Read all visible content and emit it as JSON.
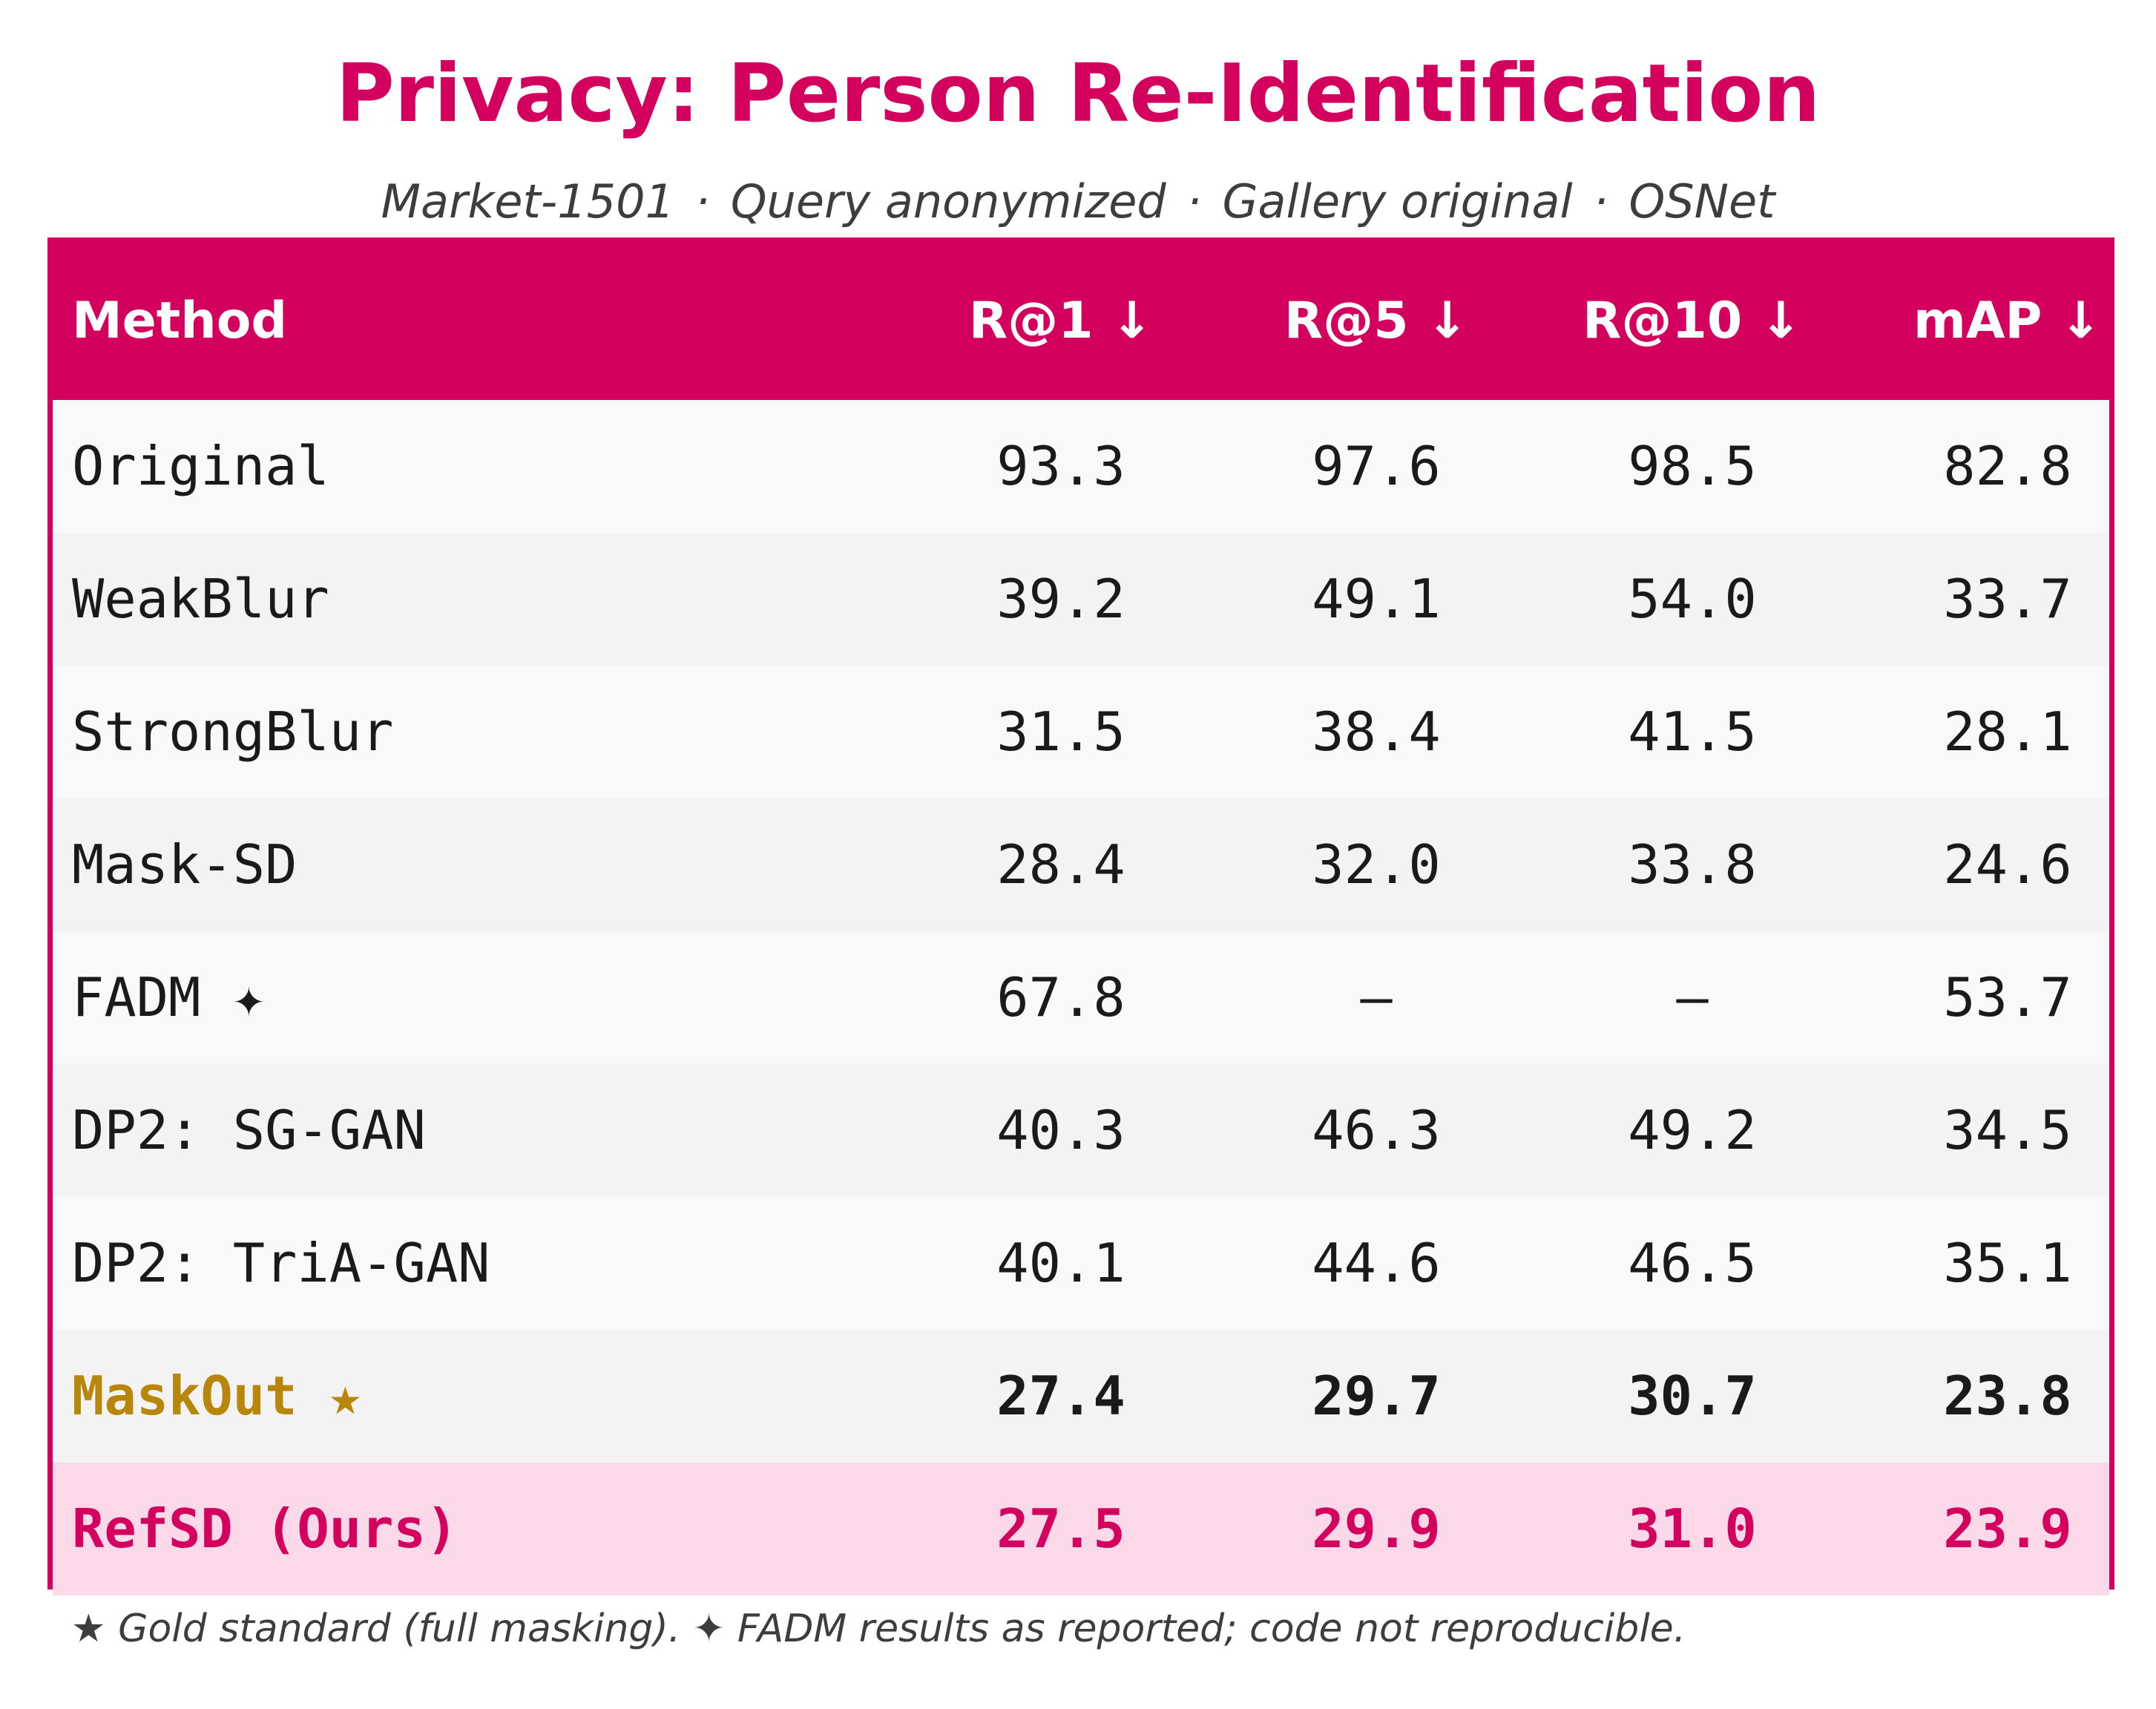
{
  "chart_data": {
    "type": "table",
    "title": "Privacy: Person Re-Identification",
    "subtitle_parts": [
      "Market-1501",
      "Query anonymized",
      "Gallery original",
      "OSNet"
    ],
    "columns": [
      "Method",
      "R@1 ↓",
      "R@5 ↓",
      "R@10 ↓",
      "mAP ↓"
    ],
    "rows": [
      {
        "method": "Original",
        "values": [
          "93.3",
          "97.6",
          "98.5",
          "82.8"
        ],
        "bg": "#f9f9f9"
      },
      {
        "method": "WeakBlur",
        "values": [
          "39.2",
          "49.1",
          "54.0",
          "33.7"
        ],
        "bg": "#f3f3f3"
      },
      {
        "method": "StrongBlur",
        "values": [
          "31.5",
          "38.4",
          "41.5",
          "28.1"
        ],
        "bg": "#f9f9f9"
      },
      {
        "method": "Mask-SD",
        "values": [
          "28.4",
          "32.0",
          "33.8",
          "24.6"
        ],
        "bg": "#f3f3f3"
      },
      {
        "method": "FADM ✦",
        "values": [
          "67.8",
          "–",
          "–",
          "53.7"
        ],
        "bg": "#f9f9f9"
      },
      {
        "method": "DP2: SG-GAN",
        "values": [
          "40.3",
          "46.3",
          "49.2",
          "34.5"
        ],
        "bg": "#f3f3f3"
      },
      {
        "method": "DP2: TriA-GAN",
        "values": [
          "40.1",
          "44.6",
          "46.5",
          "35.1"
        ],
        "bg": "#f9f9f9"
      },
      {
        "method": "MaskOut ★",
        "values": [
          "27.4",
          "29.7",
          "30.7",
          "23.8"
        ],
        "bg": "#f3f3f3",
        "style": "gold"
      },
      {
        "method": "RefSD (Ours)",
        "values": [
          "27.5",
          "29.9",
          "31.0",
          "23.9"
        ],
        "bg": "#fcd9e9",
        "style": "ours"
      }
    ],
    "footnote": "★ Gold standard (full masking).  ✦ FADM results as reported; code not reproducible."
  },
  "colors": {
    "accent": "#d4005e",
    "gold": "#b8860b",
    "ours_row_bg": "#fcd9e9",
    "text": "#1a1a1a",
    "muted": "#3d3d3d"
  }
}
